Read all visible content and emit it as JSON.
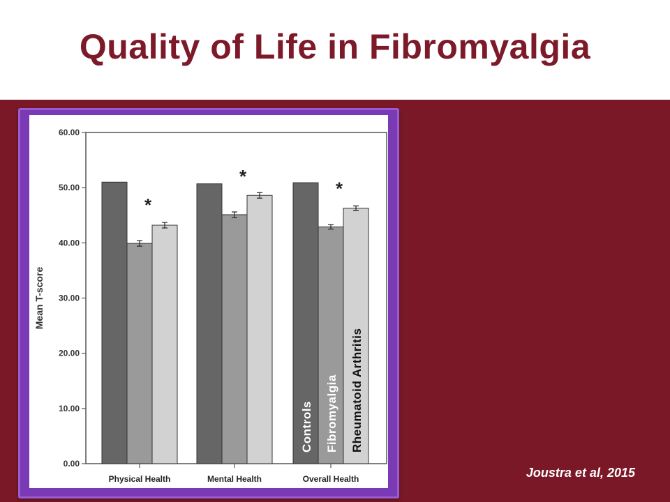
{
  "slide": {
    "title": "Quality of Life in Fibromyalgia",
    "citation": "Joustra et al, 2015"
  },
  "colors": {
    "title": "#7d1a2a",
    "band": "#7a1828",
    "frame": "#7a3ab5",
    "controls": "#666666",
    "fibromyalgia": "#9a9a9a",
    "rheumatoid_arthritis": "#d2d2d2"
  },
  "chart_data": {
    "type": "bar",
    "ylabel": "Mean T-score",
    "xlabel": "",
    "ylim": [
      0,
      60
    ],
    "yticks": [
      "0.00",
      "10.00",
      "20.00",
      "30.00",
      "40.00",
      "50.00",
      "60.00"
    ],
    "categories": [
      "Physical Health",
      "Mental Health",
      "Overall  Health"
    ],
    "series": [
      {
        "name": "Controls",
        "values": [
          51.0,
          50.7,
          50.9
        ],
        "errors": [
          0.1,
          0.1,
          0.1
        ]
      },
      {
        "name": "Fibromyalgia",
        "values": [
          39.9,
          45.1,
          42.9
        ],
        "errors": [
          0.5,
          0.5,
          0.4
        ]
      },
      {
        "name": "Rheumatoid Arthritis",
        "values": [
          43.2,
          48.6,
          46.3
        ],
        "errors": [
          0.5,
          0.5,
          0.4
        ]
      }
    ],
    "significance_marker": "*",
    "grid": false,
    "legend": "bar labels inside third group"
  }
}
